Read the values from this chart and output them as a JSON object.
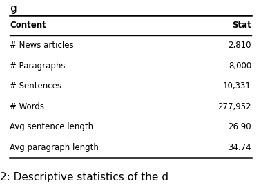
{
  "rows": [
    [
      "# News articles",
      "2,810"
    ],
    [
      "# Paragraphs",
      "8,000"
    ],
    [
      "# Sentences",
      "10,331"
    ],
    [
      "# Words",
      "277,952"
    ],
    [
      "Avg sentence length",
      "26.90"
    ],
    [
      "Avg paragraph length",
      "34.74"
    ]
  ],
  "col_headers": [
    "Content",
    "Stat"
  ],
  "top_partial_text": "g",
  "caption": "2: Descriptive statistics of the d",
  "background_color": "#ffffff",
  "font_size": 8.5,
  "header_font_size": 8.5,
  "caption_font_size": 11
}
